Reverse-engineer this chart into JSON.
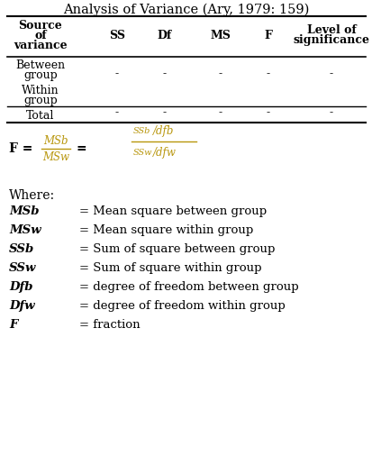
{
  "title": "Analysis of Variance (Ary, 1979: 159)",
  "headers": [
    "Source\nof\nvariance",
    "SS",
    "Df",
    "MS",
    "F",
    "Level of\nsignificance"
  ],
  "dash": "-",
  "where_items": [
    [
      "MSb",
      "= Mean square between group"
    ],
    [
      "MSw",
      "= Mean square within group"
    ],
    [
      "SSb",
      "= Sum of square between group"
    ],
    [
      "SSw",
      "= Sum of square within group"
    ],
    [
      "Dfb",
      "= degree of freedom between group"
    ],
    [
      "Dfw",
      "= degree of freedom within group"
    ],
    [
      "F",
      "= fraction"
    ]
  ],
  "bg_color": "#ffffff",
  "formula_color": "#b8960c"
}
